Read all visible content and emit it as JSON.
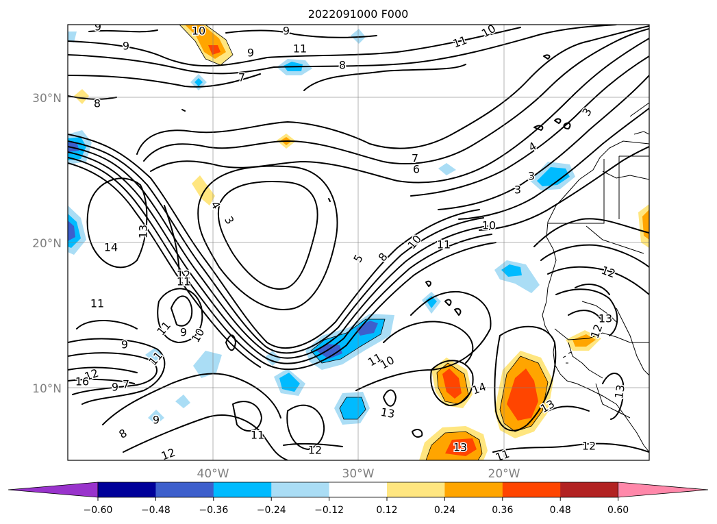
{
  "title": "2022091000 F000",
  "map": {
    "lat_labels": [
      "30°N",
      "20°N",
      "10°N"
    ],
    "lon_labels": [
      "40°W",
      "30°W",
      "20°W"
    ],
    "gridlines": true,
    "contour_color": "#000000",
    "contour_labels": [
      "10",
      "9",
      "9",
      "9",
      "11",
      "10",
      "11",
      "9",
      "8",
      "7",
      "8",
      "7",
      "6",
      "3",
      "4",
      "3",
      "3",
      "4",
      "3",
      "13",
      "14",
      "12",
      "11",
      "11",
      "9",
      "10",
      "11",
      "10",
      "5",
      "8",
      "10",
      "11",
      "9",
      "11",
      "12",
      "16",
      "9",
      "7",
      "8",
      "9",
      "12",
      "11",
      "10",
      "14",
      "13",
      "11",
      "12",
      "13",
      "13",
      "11",
      "12",
      "12",
      "13",
      "12",
      "13"
    ],
    "shaded_field_colors": {
      "negative": [
        "#9933cc",
        "#000099",
        "#3d5fcc",
        "#00bbff",
        "#aaddf5"
      ],
      "positive": [
        "#ffe680",
        "#ffa500",
        "#ff4500",
        "#b22222",
        "#ff88aa"
      ]
    }
  },
  "colorbar": {
    "ticks": [
      "−0.60",
      "−0.48",
      "−0.36",
      "−0.24",
      "−0.12",
      "0.12",
      "0.24",
      "0.36",
      "0.48",
      "0.60"
    ],
    "colors": [
      "#9933cc",
      "#000099",
      "#3d5fcc",
      "#00bbff",
      "#aaddf5",
      "#ffffff",
      "#ffe680",
      "#ffa500",
      "#ff4500",
      "#b22222",
      "#ff88aa"
    ],
    "extend": "both"
  }
}
